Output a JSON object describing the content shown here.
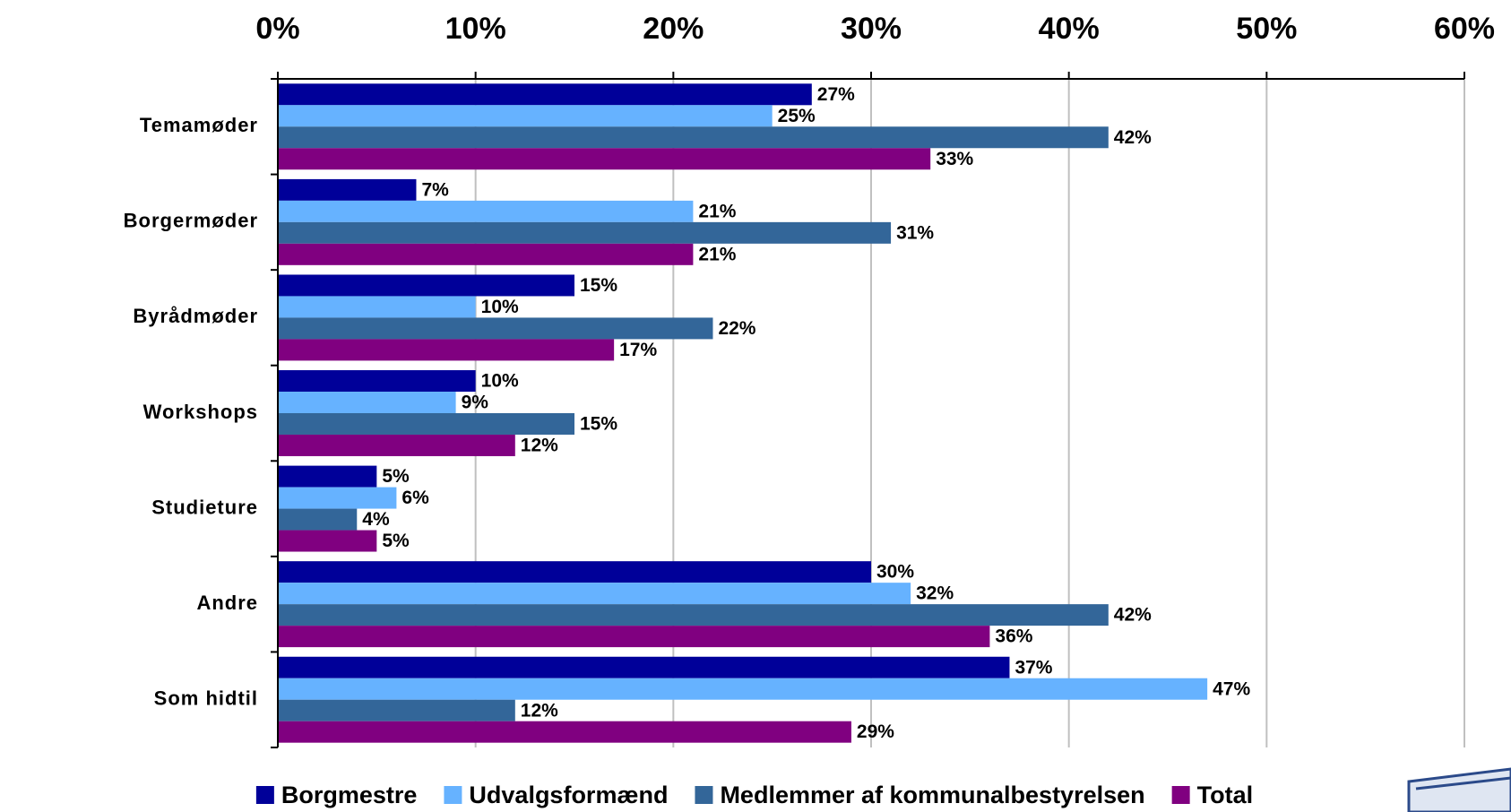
{
  "chart_data": {
    "type": "bar",
    "orientation": "horizontal",
    "categories": [
      "Temamøder",
      "Borgermøder",
      "Byrådmøder",
      "Workshops",
      "Studieture",
      "Andre",
      "Som hidtil"
    ],
    "series": [
      {
        "name": "Borgmestre",
        "color": "#000099",
        "values": [
          27,
          7,
          15,
          10,
          5,
          30,
          37
        ],
        "value_labels": [
          "27%",
          "7%",
          "15%",
          "10%",
          "5%",
          "30%",
          "37%"
        ]
      },
      {
        "name": "Udvalgsformænd",
        "color": "#66b2ff",
        "values": [
          25,
          21,
          10,
          9,
          6,
          32,
          47
        ],
        "value_labels": [
          "25%",
          "21%",
          "10%",
          "9%",
          "6%",
          "32%",
          "47%"
        ]
      },
      {
        "name": "Medlemmer af kommunalbestyrelsen",
        "color": "#336699",
        "values": [
          42,
          31,
          22,
          15,
          4,
          42,
          12
        ],
        "value_labels": [
          "42%",
          "31%",
          "22%",
          "15%",
          "4%",
          "42%",
          "12%"
        ]
      },
      {
        "name": "Total",
        "color": "#800080",
        "values": [
          33,
          21,
          17,
          12,
          5,
          36,
          29
        ],
        "value_labels": [
          "33%",
          "21%",
          "17%",
          "12%",
          "5%",
          "36%",
          "29%"
        ]
      }
    ],
    "xlim": [
      0,
      60
    ],
    "xticks": [
      {
        "value": 0,
        "label": "0%"
      },
      {
        "value": 10,
        "label": "10%"
      },
      {
        "value": 20,
        "label": "20%"
      },
      {
        "value": 30,
        "label": "30%"
      },
      {
        "value": 40,
        "label": "40%"
      },
      {
        "value": 50,
        "label": "50%"
      },
      {
        "value": 60,
        "label": "60%"
      }
    ],
    "grid": true,
    "legend": "bottom"
  }
}
